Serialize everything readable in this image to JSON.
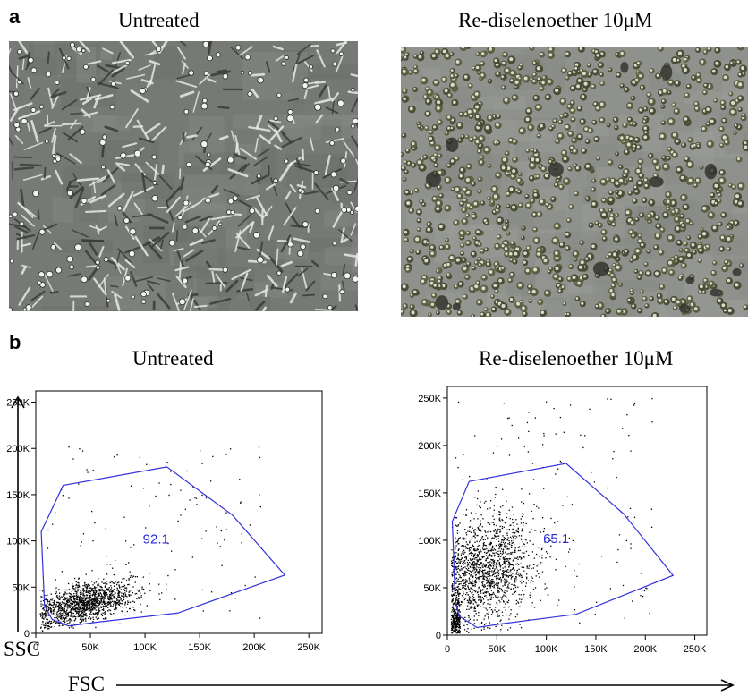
{
  "panel_a": {
    "letter": "a",
    "left_title": "Untreated",
    "right_title": "Re-diselenoether 10μM"
  },
  "panel_b": {
    "letter": "b",
    "left_title": "Untreated",
    "right_title": "Re-diselenoether 10μM",
    "y_axis_word": "SSC",
    "x_axis_word": "FSC"
  },
  "chart_data": [
    {
      "type": "scatter",
      "title": "Untreated",
      "xlim": [
        0,
        262144
      ],
      "ylim": [
        0,
        262144
      ],
      "x_ticks": [
        "0",
        "50K",
        "100K",
        "150K",
        "200K",
        "250K"
      ],
      "y_ticks": [
        "0",
        "50K",
        "100K",
        "150K",
        "200K",
        "250K"
      ],
      "gate_percent": "92.1",
      "gate_polygon": [
        [
          8000,
          30000
        ],
        [
          5000,
          110000
        ],
        [
          25000,
          160000
        ],
        [
          120000,
          180000
        ],
        [
          180000,
          128000
        ],
        [
          228000,
          63000
        ],
        [
          130000,
          22000
        ],
        [
          55000,
          12000
        ],
        [
          30000,
          8000
        ],
        [
          15000,
          15000
        ]
      ],
      "population": {
        "center": [
          45000,
          33000
        ],
        "spread": [
          22000,
          10000
        ],
        "count": 1400,
        "outliers": 120
      }
    },
    {
      "type": "scatter",
      "title": "Re-diselenoether 10μM",
      "xlim": [
        0,
        262144
      ],
      "ylim": [
        0,
        262144
      ],
      "x_ticks": [
        "0",
        "50K",
        "100K",
        "150K",
        "200K",
        "250K"
      ],
      "y_ticks": [
        "0",
        "50K",
        "100K",
        "150K",
        "200K",
        "250K"
      ],
      "gate_percent": "65.1",
      "gate_polygon": [
        [
          8000,
          35000
        ],
        [
          5000,
          120000
        ],
        [
          22000,
          162000
        ],
        [
          120000,
          181000
        ],
        [
          178000,
          128000
        ],
        [
          228000,
          63000
        ],
        [
          130000,
          22000
        ],
        [
          55000,
          12000
        ],
        [
          30000,
          8000
        ],
        [
          12000,
          20000
        ]
      ],
      "population": {
        "center": [
          40000,
          70000
        ],
        "spread": [
          25000,
          28000
        ],
        "count": 1500,
        "debris_count": 250,
        "outliers": 150
      }
    }
  ]
}
